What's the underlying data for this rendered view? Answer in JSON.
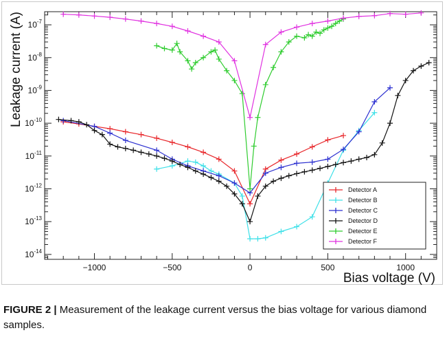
{
  "caption": {
    "label": "FIGURE 2 |",
    "text": " Measurement of the leakage current versus the bias voltage for various diamond samples."
  },
  "chart_data": {
    "type": "line",
    "xlabel": "Bias voltage (V)",
    "ylabel": "Leakage current (A)",
    "xlim": [
      -1320,
      1200
    ],
    "ylim_exp": [
      -14.15,
      -6.6
    ],
    "y_scale": "log",
    "grid": false,
    "legend_position": "bottom-right",
    "x_ticks": [
      {
        "v": -1000,
        "label": "−1000"
      },
      {
        "v": -500,
        "label": "−500"
      },
      {
        "v": 0,
        "label": "0"
      },
      {
        "v": 500,
        "label": "500"
      },
      {
        "v": 1000,
        "label": "1000"
      }
    ],
    "y_ticks": [
      {
        "e": -14,
        "base": "10",
        "exp": "-14"
      },
      {
        "e": -13,
        "base": "10",
        "exp": "-13"
      },
      {
        "e": -12,
        "base": "10",
        "exp": "-12"
      },
      {
        "e": -11,
        "base": "10",
        "exp": "-11"
      },
      {
        "e": -10,
        "base": "10",
        "exp": "-10"
      },
      {
        "e": -9,
        "base": "10",
        "exp": "-9"
      },
      {
        "e": -8,
        "base": "10",
        "exp": "-8"
      },
      {
        "e": -7,
        "base": "10",
        "exp": "-7"
      }
    ],
    "series": [
      {
        "name": "Detector A",
        "color": "#e8262a",
        "x": [
          -1200,
          -1100,
          -1000,
          -900,
          -800,
          -700,
          -600,
          -500,
          -400,
          -300,
          -200,
          -100,
          0,
          100,
          200,
          300,
          400,
          500,
          600
        ],
        "y": [
          1.1e-10,
          9.5e-11,
          8e-11,
          6.8e-11,
          5.5e-11,
          4.5e-11,
          3.5e-11,
          2.6e-11,
          1.9e-11,
          1.3e-11,
          8e-12,
          3.5e-12,
          3.5e-13,
          4e-12,
          7.5e-12,
          1.15e-11,
          1.9e-11,
          3.1e-11,
          4.2e-11
        ]
      },
      {
        "name": "Detector B",
        "color": "#3de0e8",
        "x": [
          -600,
          -500,
          -400,
          -350,
          -300,
          -250,
          -200,
          -100,
          -50,
          0,
          50,
          100,
          200,
          300,
          400,
          500,
          600,
          700,
          800
        ],
        "y": [
          4e-12,
          5e-12,
          7e-12,
          6.5e-12,
          5e-12,
          3.5e-12,
          2.8e-12,
          1.5e-12,
          6e-13,
          3e-14,
          3e-14,
          3.2e-14,
          5e-14,
          7e-14,
          1.4e-13,
          1.5e-12,
          1.5e-11,
          6e-11,
          2.1e-10
        ]
      },
      {
        "name": "Detector C",
        "color": "#2b2fd0",
        "x": [
          -1200,
          -1000,
          -900,
          -800,
          -600,
          -500,
          -400,
          -300,
          -200,
          -100,
          0,
          100,
          200,
          300,
          400,
          500,
          600,
          700,
          800,
          900
        ],
        "y": [
          1.2e-10,
          8e-11,
          5e-11,
          3e-11,
          1.5e-11,
          8e-12,
          5e-12,
          3.5e-12,
          2.5e-12,
          1.5e-12,
          7.5e-13,
          3e-12,
          4.5e-12,
          6e-12,
          6.5e-12,
          8e-12,
          1.6e-11,
          5.5e-11,
          4.5e-10,
          1.2e-09
        ]
      },
      {
        "name": "Detector D",
        "color": "#111111",
        "x": [
          -1230,
          -1150,
          -1100,
          -1050,
          -1000,
          -950,
          -900,
          -850,
          -800,
          -750,
          -700,
          -650,
          -600,
          -550,
          -500,
          -450,
          -400,
          -350,
          -300,
          -250,
          -200,
          -150,
          -100,
          -50,
          0,
          50,
          100,
          150,
          200,
          250,
          300,
          350,
          400,
          450,
          500,
          550,
          600,
          650,
          700,
          750,
          800,
          850,
          900,
          950,
          1000,
          1050,
          1100,
          1150
        ],
        "y": [
          1.3e-10,
          1.2e-10,
          1.1e-10,
          9e-11,
          6e-11,
          4.5e-11,
          2.3e-11,
          1.9e-11,
          1.7e-11,
          1.5e-11,
          1.3e-11,
          1.15e-11,
          1e-11,
          8.5e-12,
          7e-12,
          5.5e-12,
          4.5e-12,
          3.5e-12,
          2.8e-12,
          2.2e-12,
          1.7e-12,
          1.2e-12,
          7e-13,
          3.5e-13,
          1e-13,
          6e-13,
          1.2e-12,
          1.7e-12,
          2.1e-12,
          2.5e-12,
          2.9e-12,
          3.3e-12,
          3.7e-12,
          4.2e-12,
          4.8e-12,
          5.5e-12,
          6.3e-12,
          7e-12,
          8e-12,
          9e-12,
          1.1e-11,
          2.5e-11,
          1e-10,
          7e-10,
          2e-09,
          4e-09,
          5.5e-09,
          7e-09
        ]
      },
      {
        "name": "Detector E",
        "color": "#2ecc2e",
        "x": [
          -600,
          -550,
          -500,
          -470,
          -450,
          -400,
          -375,
          -350,
          -300,
          -250,
          -225,
          -200,
          -150,
          -100,
          -50,
          0,
          25,
          50,
          100,
          150,
          200,
          250,
          300,
          350,
          375,
          400,
          425,
          450,
          475,
          500,
          525,
          550,
          575,
          600
        ],
        "y": [
          2.3e-08,
          1.9e-08,
          1.7e-08,
          2.7e-08,
          1.5e-08,
          8e-09,
          4.5e-09,
          7e-09,
          1e-08,
          1.5e-08,
          1.7e-08,
          9e-09,
          4e-09,
          2e-09,
          8e-10,
          1e-12,
          2e-11,
          1.5e-10,
          1.5e-09,
          5e-09,
          1.5e-08,
          3e-08,
          4.5e-08,
          4e-08,
          5e-08,
          4.5e-08,
          6e-08,
          5.5e-08,
          7e-08,
          8e-08,
          9e-08,
          1.1e-07,
          1.3e-07,
          1.5e-07
        ]
      },
      {
        "name": "Detector F",
        "color": "#e030e0",
        "x": [
          -1200,
          -1100,
          -1000,
          -900,
          -800,
          -700,
          -600,
          -500,
          -400,
          -300,
          -200,
          -100,
          0,
          100,
          200,
          300,
          400,
          500,
          600,
          700,
          800,
          900,
          1000,
          1100
        ],
        "y": [
          2.1e-07,
          2e-07,
          1.85e-07,
          1.7e-07,
          1.5e-07,
          1.3e-07,
          1.1e-07,
          9e-08,
          6.5e-08,
          4.5e-08,
          3e-08,
          8e-09,
          1.5e-10,
          2.5e-08,
          6e-08,
          8.5e-08,
          1.1e-07,
          1.3e-07,
          1.6e-07,
          1.8e-07,
          1.9e-07,
          2.2e-07,
          2.1e-07,
          2.3e-07
        ]
      }
    ]
  }
}
